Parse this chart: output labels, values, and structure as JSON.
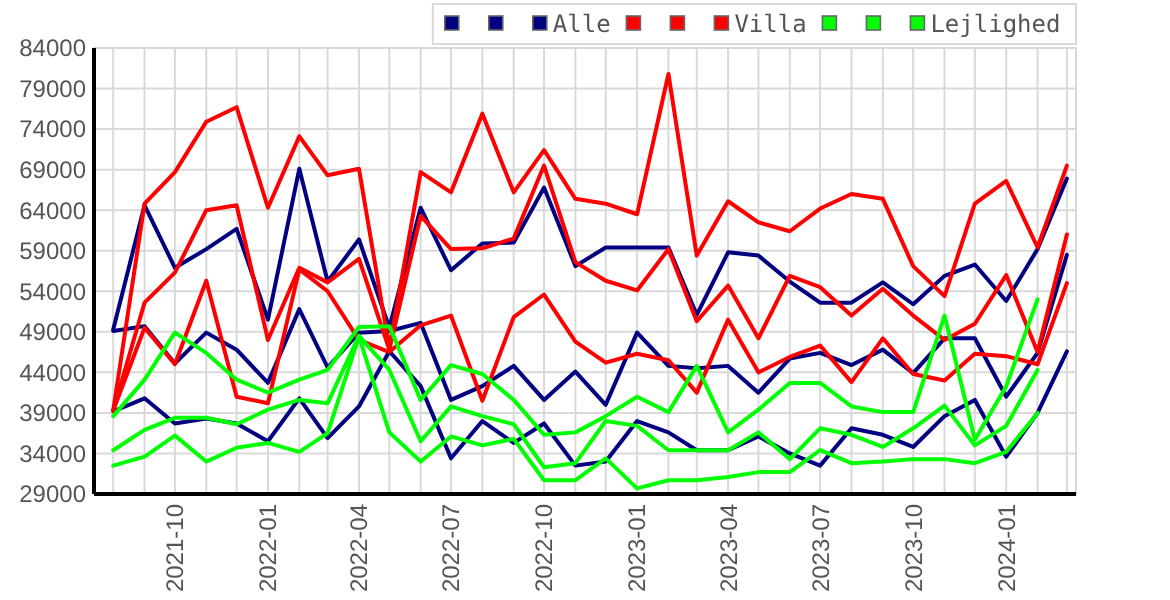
{
  "chart_data": {
    "type": "line",
    "x": [
      "2021-08",
      "2021-09",
      "2021-10",
      "2021-11",
      "2021-12",
      "2022-01",
      "2022-02",
      "2022-03",
      "2022-04",
      "2022-05",
      "2022-06",
      "2022-07",
      "2022-08",
      "2022-09",
      "2022-10",
      "2022-11",
      "2022-12",
      "2023-01",
      "2023-02",
      "2023-03",
      "2023-04",
      "2023-05",
      "2023-06",
      "2023-07",
      "2023-08",
      "2023-09",
      "2023-10",
      "2023-11",
      "2023-12",
      "2024-01",
      "2024-02",
      "2024-03"
    ],
    "series": [
      {
        "color": "#000080",
        "values": [
          49300,
          64600,
          56900,
          59200,
          61700,
          50500,
          69100,
          55200,
          60400,
          49500,
          64300,
          56600,
          59900,
          60000,
          66800,
          57100,
          59400,
          59400,
          59400,
          51100,
          58800,
          58400,
          55200,
          52600,
          52600,
          55100,
          52400,
          55900,
          57300,
          52800,
          59200,
          67900
        ]
      },
      {
        "color": "#000080",
        "values": [
          49100,
          49700,
          45100,
          48900,
          46800,
          42700,
          51800,
          44600,
          48900,
          49100,
          50100,
          40600,
          42300,
          44800,
          40600,
          44100,
          40000,
          48900,
          44800,
          44500,
          44800,
          41500,
          45700,
          46400,
          44900,
          46800,
          43900,
          48200,
          48200,
          41000,
          46400,
          58500
        ]
      },
      {
        "name": "Alle",
        "color": "#000080",
        "values": [
          39200,
          40800,
          37700,
          38300,
          37700,
          35500,
          40800,
          35900,
          39800,
          46600,
          42300,
          33400,
          38000,
          35300,
          37700,
          32500,
          33000,
          38000,
          36600,
          34400,
          34400,
          36100,
          34000,
          32500,
          37100,
          36300,
          34800,
          38600,
          40600,
          33600,
          39000,
          46600
        ]
      },
      {
        "color": "#ff0000",
        "values": [
          39300,
          64800,
          68700,
          74900,
          76700,
          64300,
          73100,
          68300,
          69100,
          47000,
          68700,
          66200,
          75900,
          66200,
          71400,
          65400,
          64800,
          63500,
          80800,
          58400,
          65100,
          62500,
          61400,
          64200,
          66000,
          65400,
          57100,
          53400,
          64800,
          67600,
          59400,
          69500
        ]
      },
      {
        "color": "#ff0000",
        "values": [
          39300,
          52600,
          56300,
          64000,
          64600,
          48000,
          56900,
          55100,
          58000,
          46800,
          63300,
          59200,
          59300,
          60500,
          69500,
          57600,
          55300,
          54100,
          59200,
          50300,
          54700,
          48200,
          55900,
          54500,
          51000,
          54300,
          51000,
          48000,
          50000,
          56000,
          46500,
          61000
        ]
      },
      {
        "name": "Villa",
        "color": "#ff0000",
        "values": [
          39300,
          49500,
          45000,
          55300,
          41000,
          40200,
          56700,
          54000,
          48000,
          46500,
          49800,
          51000,
          40500,
          50800,
          53600,
          47800,
          45200,
          46300,
          45500,
          41500,
          50500,
          44000,
          45900,
          47300,
          42800,
          48200,
          43800,
          43000,
          46300,
          46000,
          45000,
          55000
        ]
      },
      {
        "color": "#00ff00",
        "values": [
          38600,
          43100,
          48900,
          46400,
          43100,
          41500,
          43100,
          44300,
          49600,
          49700,
          40600,
          44900,
          43800,
          40600,
          36300,
          36600,
          38600,
          41000,
          39100,
          44800,
          36600,
          39400,
          42700,
          42700,
          39800,
          39100,
          39100,
          51000,
          35700,
          42300,
          53000,
          null
        ]
      },
      {
        "color": "#00ff00",
        "values": [
          34400,
          36900,
          38400,
          38400,
          37600,
          39400,
          40600,
          40200,
          48500,
          44300,
          35500,
          39800,
          38600,
          37600,
          32300,
          32800,
          38000,
          37400,
          34400,
          34400,
          34400,
          36600,
          33300,
          37100,
          36300,
          34800,
          37100,
          39900,
          35000,
          37400,
          44300,
          null
        ]
      },
      {
        "name": "Lejlighed",
        "color": "#00ff00",
        "values": [
          32500,
          33600,
          36200,
          33000,
          34700,
          35300,
          34200,
          36500,
          48400,
          36600,
          33000,
          36100,
          35000,
          35800,
          30700,
          30700,
          33400,
          29700,
          30700,
          30700,
          31100,
          31700,
          31700,
          34400,
          32800,
          33000,
          33300,
          33300,
          32800,
          34200,
          39000,
          null
        ]
      }
    ],
    "xlim": [
      "2021-07-13",
      "2024-03-10"
    ],
    "xticks": [
      {
        "value": "2021-08",
        "label": null
      },
      {
        "value": "2021-09",
        "label": null
      },
      "2021-10",
      {
        "value": "2021-11",
        "label": null
      },
      {
        "value": "2021-12",
        "label": null
      },
      "2022-01",
      {
        "value": "2022-02",
        "label": null
      },
      {
        "value": "2022-03",
        "label": null
      },
      "2022-04",
      {
        "value": "2022-05",
        "label": null
      },
      {
        "value": "2022-06",
        "label": null
      },
      "2022-07",
      {
        "value": "2022-08",
        "label": null
      },
      {
        "value": "2022-09",
        "label": null
      },
      "2022-10",
      {
        "value": "2022-11",
        "label": null
      },
      {
        "value": "2022-12",
        "label": null
      },
      "2023-01",
      {
        "value": "2023-02",
        "label": null
      },
      {
        "value": "2023-03",
        "label": null
      },
      "2023-04",
      {
        "value": "2023-05",
        "label": null
      },
      {
        "value": "2023-06",
        "label": null
      },
      "2023-07",
      {
        "value": "2023-08",
        "label": null
      },
      {
        "value": "2023-09",
        "label": null
      },
      "2023-10",
      {
        "value": "2023-11",
        "label": null
      },
      {
        "value": "2023-12",
        "label": null
      },
      "2024-01",
      {
        "value": "2024-02",
        "label": null
      },
      {
        "value": "2024-03",
        "label": null
      }
    ],
    "ylim": [
      29000,
      84000
    ],
    "yticks": [
      29000,
      34000,
      39000,
      44000,
      49000,
      54000,
      59000,
      64000,
      69000,
      74000,
      79000,
      84000
    ],
    "grid": true,
    "legend": "top right",
    "line_style": "solid"
  }
}
